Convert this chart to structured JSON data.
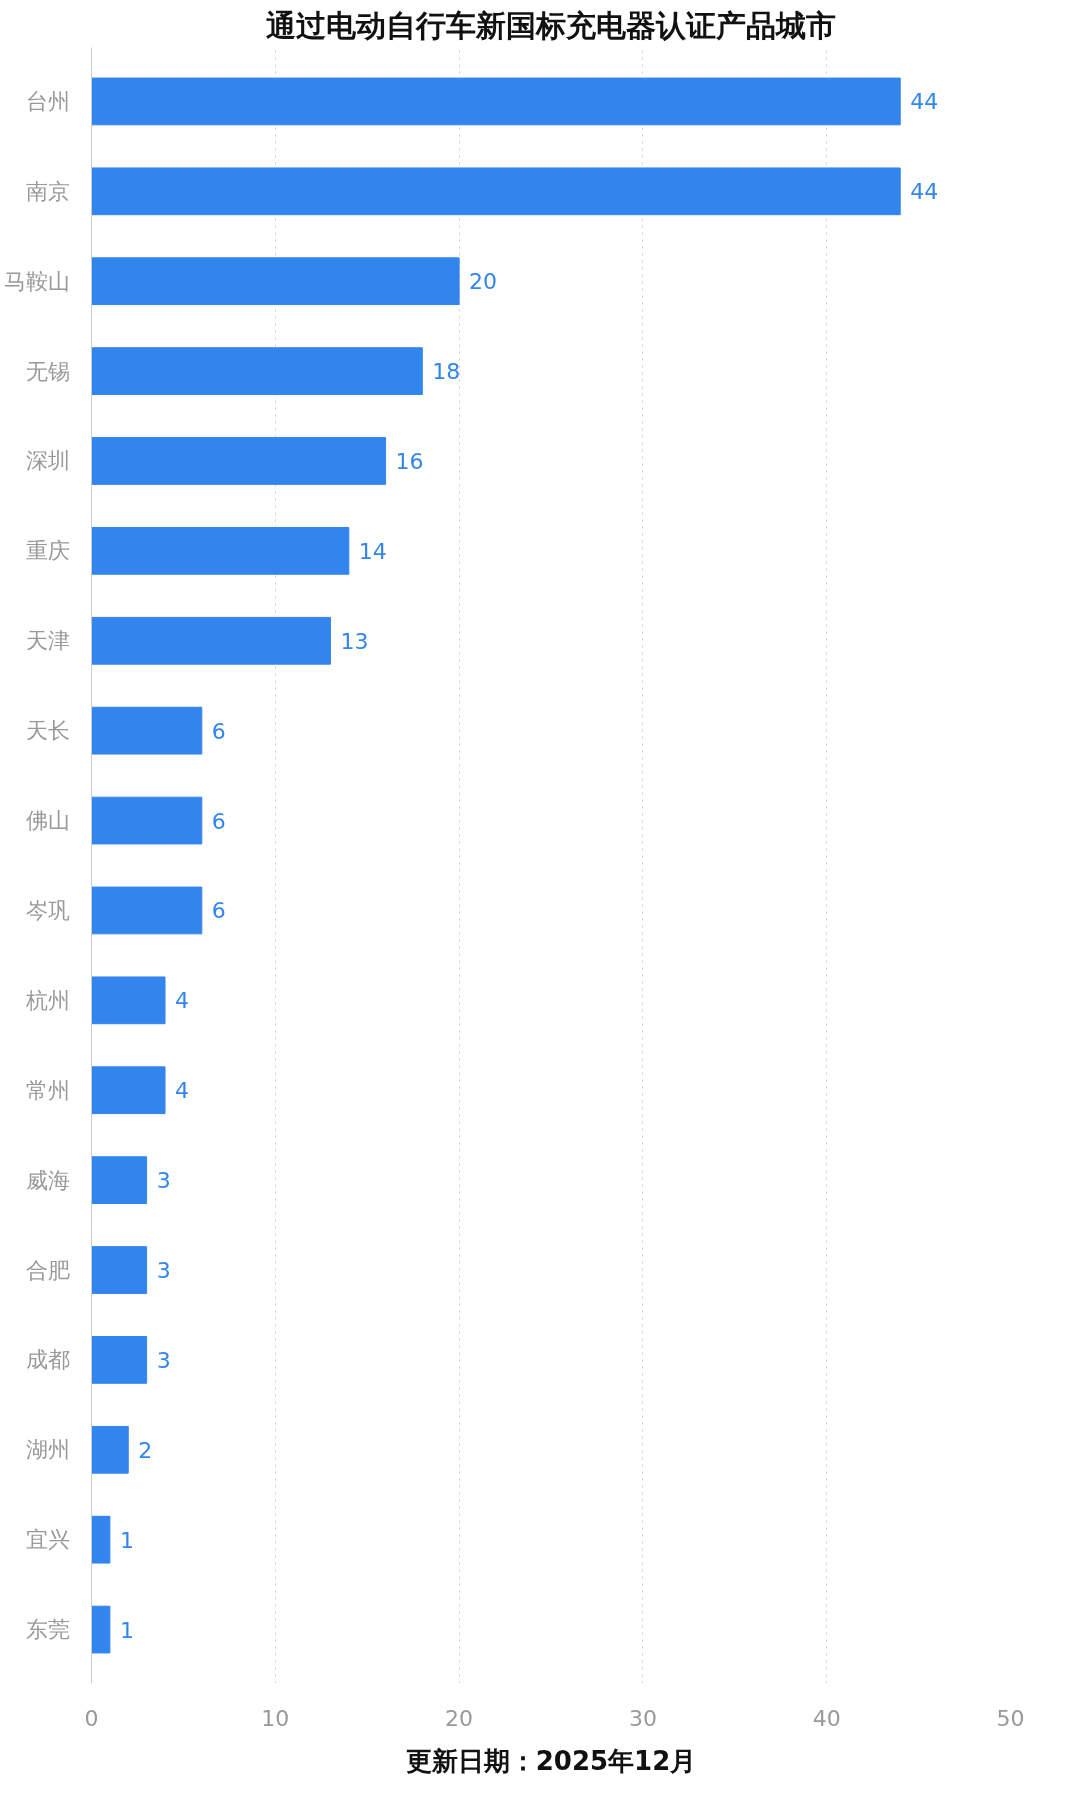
{
  "chart_data": {
    "type": "bar",
    "orientation": "horizontal",
    "title": "通过电动自行车新国标充电器认证产品城市",
    "categories": [
      "台州",
      "南京",
      "马鞍山",
      "无锡",
      "深圳",
      "重庆",
      "天津",
      "天长",
      "佛山",
      "岑巩",
      "杭州",
      "常州",
      "威海",
      "合肥",
      "成都",
      "湖州",
      "宜兴",
      "东莞"
    ],
    "values": [
      44,
      44,
      20,
      18,
      16,
      14,
      13,
      6,
      6,
      6,
      4,
      4,
      3,
      3,
      3,
      2,
      1,
      1
    ],
    "color": "#3385ee",
    "xlim": [
      0,
      50
    ],
    "xticks": [
      0,
      10,
      20,
      30,
      40,
      50
    ],
    "grid": "x",
    "data_labels": true,
    "annotations": [
      "更新日期：2025年12月"
    ]
  }
}
